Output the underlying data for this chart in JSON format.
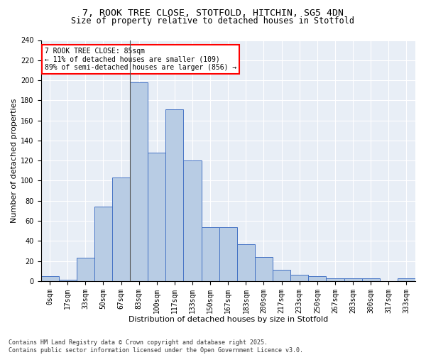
{
  "title_line1": "7, ROOK TREE CLOSE, STOTFOLD, HITCHIN, SG5 4DN",
  "title_line2": "Size of property relative to detached houses in Stotfold",
  "xlabel": "Distribution of detached houses by size in Stotfold",
  "ylabel": "Number of detached properties",
  "categories": [
    "0sqm",
    "17sqm",
    "33sqm",
    "50sqm",
    "67sqm",
    "83sqm",
    "100sqm",
    "117sqm",
    "133sqm",
    "150sqm",
    "167sqm",
    "183sqm",
    "200sqm",
    "217sqm",
    "233sqm",
    "250sqm",
    "267sqm",
    "283sqm",
    "300sqm",
    "317sqm",
    "333sqm"
  ],
  "values": [
    5,
    1,
    23,
    74,
    103,
    198,
    128,
    171,
    120,
    54,
    54,
    37,
    24,
    11,
    6,
    5,
    3,
    3,
    3,
    0,
    3
  ],
  "bar_color": "#b8cce4",
  "bar_edge_color": "#4472c4",
  "vline_index": 5,
  "annotation_text": "7 ROOK TREE CLOSE: 85sqm\n← 11% of detached houses are smaller (109)\n89% of semi-detached houses are larger (856) →",
  "annotation_box_color": "white",
  "annotation_box_edge_color": "red",
  "ylim": [
    0,
    240
  ],
  "yticks": [
    0,
    20,
    40,
    60,
    80,
    100,
    120,
    140,
    160,
    180,
    200,
    220,
    240
  ],
  "background_color": "#e8eef6",
  "grid_color": "white",
  "footer_text": "Contains HM Land Registry data © Crown copyright and database right 2025.\nContains public sector information licensed under the Open Government Licence v3.0.",
  "title_fontsize": 9.5,
  "subtitle_fontsize": 8.5,
  "axis_label_fontsize": 8,
  "tick_fontsize": 7,
  "annotation_fontsize": 7,
  "footer_fontsize": 6
}
